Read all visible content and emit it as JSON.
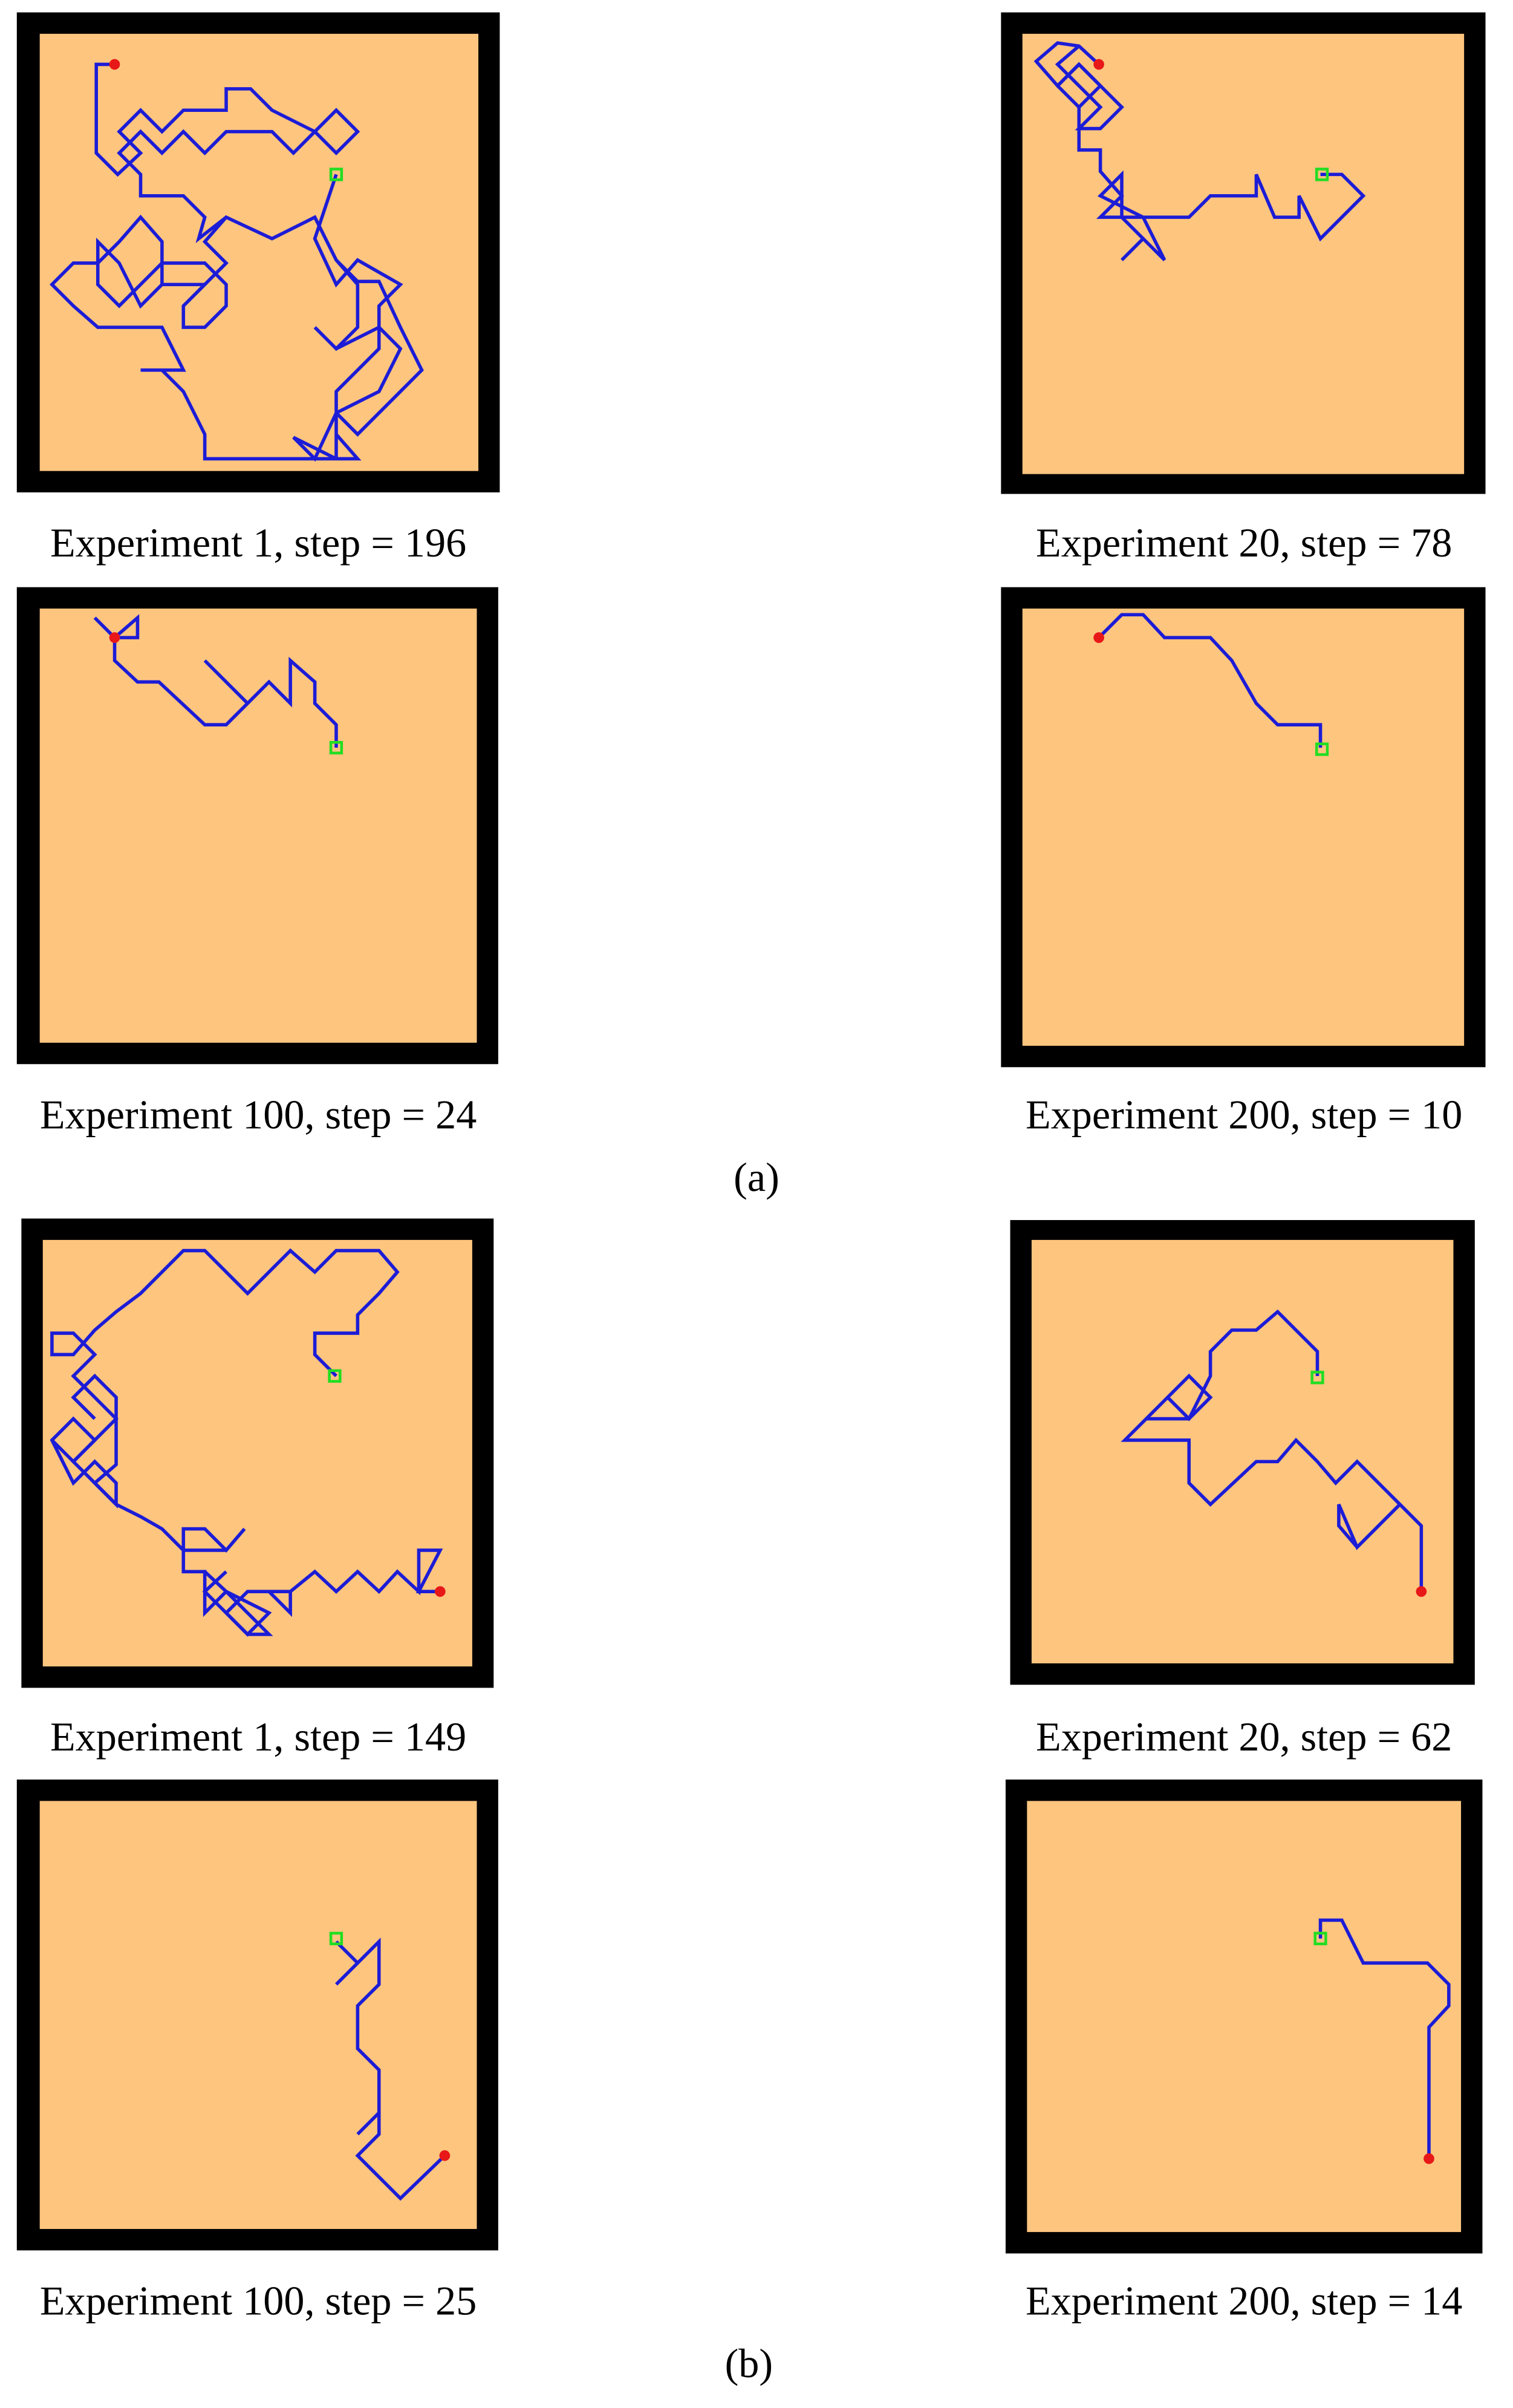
{
  "figure": {
    "groups": [
      {
        "label": "(a)",
        "panels": [
          {
            "caption": "Experiment 1, step = 196"
          },
          {
            "caption": "Experiment 20, step = 78"
          },
          {
            "caption": "Experiment 100, step = 24"
          },
          {
            "caption": "Experiment 200, step = 10"
          }
        ]
      },
      {
        "label": "(b)",
        "panels": [
          {
            "caption": "Experiment 1, step = 149"
          },
          {
            "caption": "Experiment 20, step = 62"
          },
          {
            "caption": "Experiment 100, step = 25"
          },
          {
            "caption": "Experiment 200, step = 14"
          }
        ]
      }
    ]
  }
}
